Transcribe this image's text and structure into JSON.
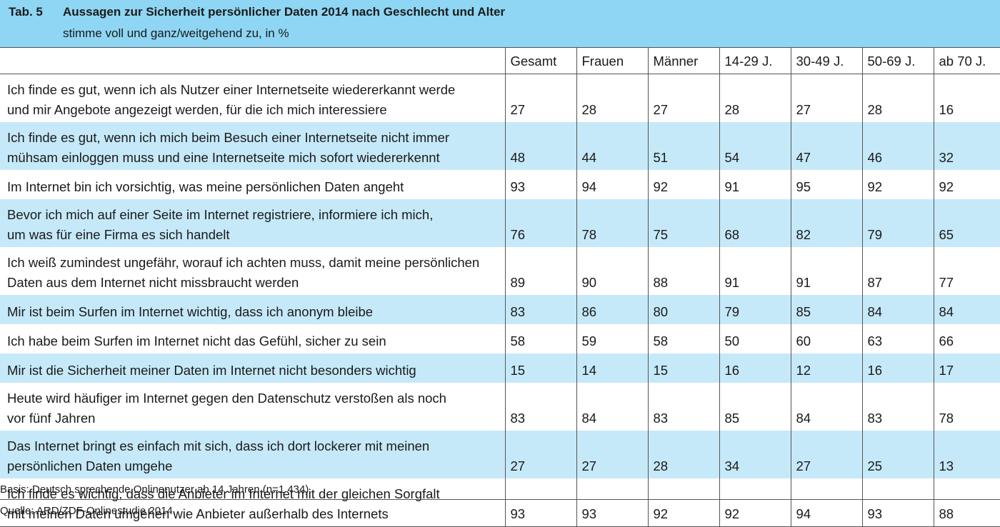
{
  "header": {
    "tab_label": "Tab. 5",
    "title": "Aussagen zur Sicherheit persönlicher Daten 2014 nach Geschlecht und Alter",
    "subtitle": "stimme voll und ganz/weitgehend zu, in %"
  },
  "table": {
    "columns": [
      "Gesamt",
      "Frauen",
      "Männer",
      "14-29 J.",
      "30-49 J.",
      "50-69 J.",
      "ab 70 J."
    ],
    "rows": [
      {
        "label_lines": [
          "Ich finde es gut, wenn ich als Nutzer einer Internetseite wiedererkannt werde",
          "und mir Angebote angezeigt werden, für die ich mich interessiere"
        ],
        "values": [
          "27",
          "28",
          "27",
          "28",
          "27",
          "28",
          "16"
        ]
      },
      {
        "label_lines": [
          "Ich finde es gut, wenn ich mich beim Besuch einer Internetseite nicht immer",
          "mühsam einloggen muss und eine Internetseite mich sofort wiedererkennt"
        ],
        "values": [
          "48",
          "44",
          "51",
          "54",
          "47",
          "46",
          "32"
        ]
      },
      {
        "label_lines": [
          "Im Internet bin ich vorsichtig, was meine persönlichen Daten angeht"
        ],
        "values": [
          "93",
          "94",
          "92",
          "91",
          "95",
          "92",
          "92"
        ]
      },
      {
        "label_lines": [
          "Bevor ich mich auf einer Seite im Internet registriere, informiere ich mich,",
          "um was für eine Firma es sich handelt"
        ],
        "values": [
          "76",
          "78",
          "75",
          "68",
          "82",
          "79",
          "65"
        ]
      },
      {
        "label_lines": [
          "Ich weiß zumindest ungefähr, worauf ich achten muss, damit meine persönlichen",
          "Daten aus dem Internet nicht missbraucht werden"
        ],
        "values": [
          "89",
          "90",
          "88",
          "91",
          "91",
          "87",
          "77"
        ]
      },
      {
        "label_lines": [
          "Mir ist beim Surfen im Internet wichtig, dass ich anonym bleibe"
        ],
        "values": [
          "83",
          "86",
          "80",
          "79",
          "85",
          "84",
          "84"
        ]
      },
      {
        "label_lines": [
          "Ich habe beim Surfen im Internet nicht das Gefühl, sicher zu sein"
        ],
        "values": [
          "58",
          "59",
          "58",
          "50",
          "60",
          "63",
          "66"
        ]
      },
      {
        "label_lines": [
          "Mir ist die Sicherheit meiner Daten im Internet nicht besonders wichtig"
        ],
        "values": [
          "15",
          "14",
          "15",
          "16",
          "12",
          "16",
          "17"
        ]
      },
      {
        "label_lines": [
          "Heute wird häufiger im Internet gegen den Datenschutz verstoßen als noch",
          "vor fünf Jahren"
        ],
        "values": [
          "83",
          "84",
          "83",
          "85",
          "84",
          "83",
          "78"
        ]
      },
      {
        "label_lines": [
          "Das Internet bringt es einfach mit sich, dass ich dort lockerer mit meinen",
          "persönlichen Daten umgehe"
        ],
        "values": [
          "27",
          "27",
          "28",
          "34",
          "27",
          "25",
          "13"
        ]
      },
      {
        "label_lines": [
          "Ich finde es wichtig, dass die Anbieter im Internet mit der gleichen Sorgfalt",
          "mit meinen Daten umgehen wie Anbieter außerhalb des Internets"
        ],
        "values": [
          "93",
          "93",
          "92",
          "92",
          "94",
          "93",
          "88"
        ]
      }
    ]
  },
  "footer": {
    "basis": "Basis: Deutsch sprechende Onlinenutzer ab 14 Jahren (n=1 434).",
    "quelle": "Quelle: ARD/ZDF-Onlinestudie 2014."
  },
  "colors": {
    "header_bg": "#8ed6f3",
    "stripe_bg": "#c6e9f9",
    "rule": "#555555"
  }
}
